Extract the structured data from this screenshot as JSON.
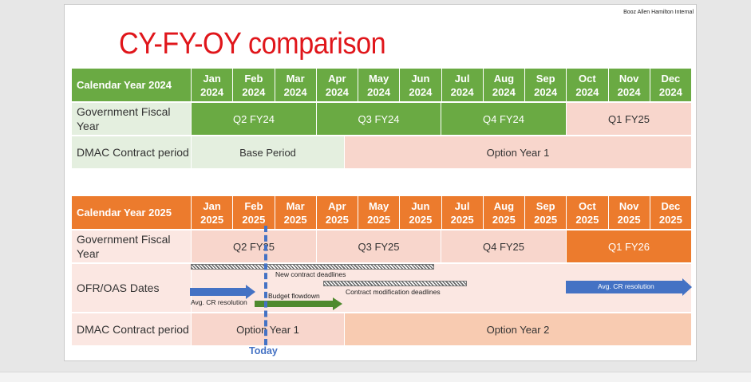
{
  "brand": "Booz Allen Hamilton Internal",
  "title": "CY-FY-OY comparison",
  "months": [
    {
      "m": "Jan"
    },
    {
      "m": "Feb"
    },
    {
      "m": "Mar"
    },
    {
      "m": "Apr"
    },
    {
      "m": "May"
    },
    {
      "m": "Jun"
    },
    {
      "m": "Jul"
    },
    {
      "m": "Aug"
    },
    {
      "m": "Sep"
    },
    {
      "m": "Oct"
    },
    {
      "m": "Nov"
    },
    {
      "m": "Dec"
    }
  ],
  "table2024": {
    "header": "Calendar Year 2024",
    "year": "2024",
    "gov_label": "Government Fiscal Year",
    "quarters": [
      "Q2 FY24",
      "Q3 FY24",
      "Q4 FY24",
      "Q1 FY25"
    ],
    "dmac_label": "DMAC Contract period",
    "periods": [
      "Base Period",
      "Option Year 1"
    ]
  },
  "table2025": {
    "header": "Calendar Year 2025",
    "year": "2025",
    "gov_label": "Government Fiscal Year",
    "quarters": [
      "Q2 FY25",
      "Q3 FY25",
      "Q4 FY25",
      "Q1 FY26"
    ],
    "ofr_label": "OFR/OAS Dates",
    "annotations": {
      "new_deadlines": "New contract deadlines",
      "contract_mod": "Contract modification deadlines",
      "avg_cr_left": "Avg. CR resolution",
      "budget_flowdown": "Budget flowdown",
      "avg_cr_right": "Avg. CR resolution"
    },
    "dmac_label": "DMAC Contract period",
    "periods": [
      "Option Year 1",
      "Option Year 2"
    ]
  },
  "today": "Today",
  "colors": {
    "green": "#6aaa43",
    "orange": "#ec7b2d",
    "pink": "#f8d6cc",
    "blue": "#4472c4",
    "red": "#e0161b"
  }
}
